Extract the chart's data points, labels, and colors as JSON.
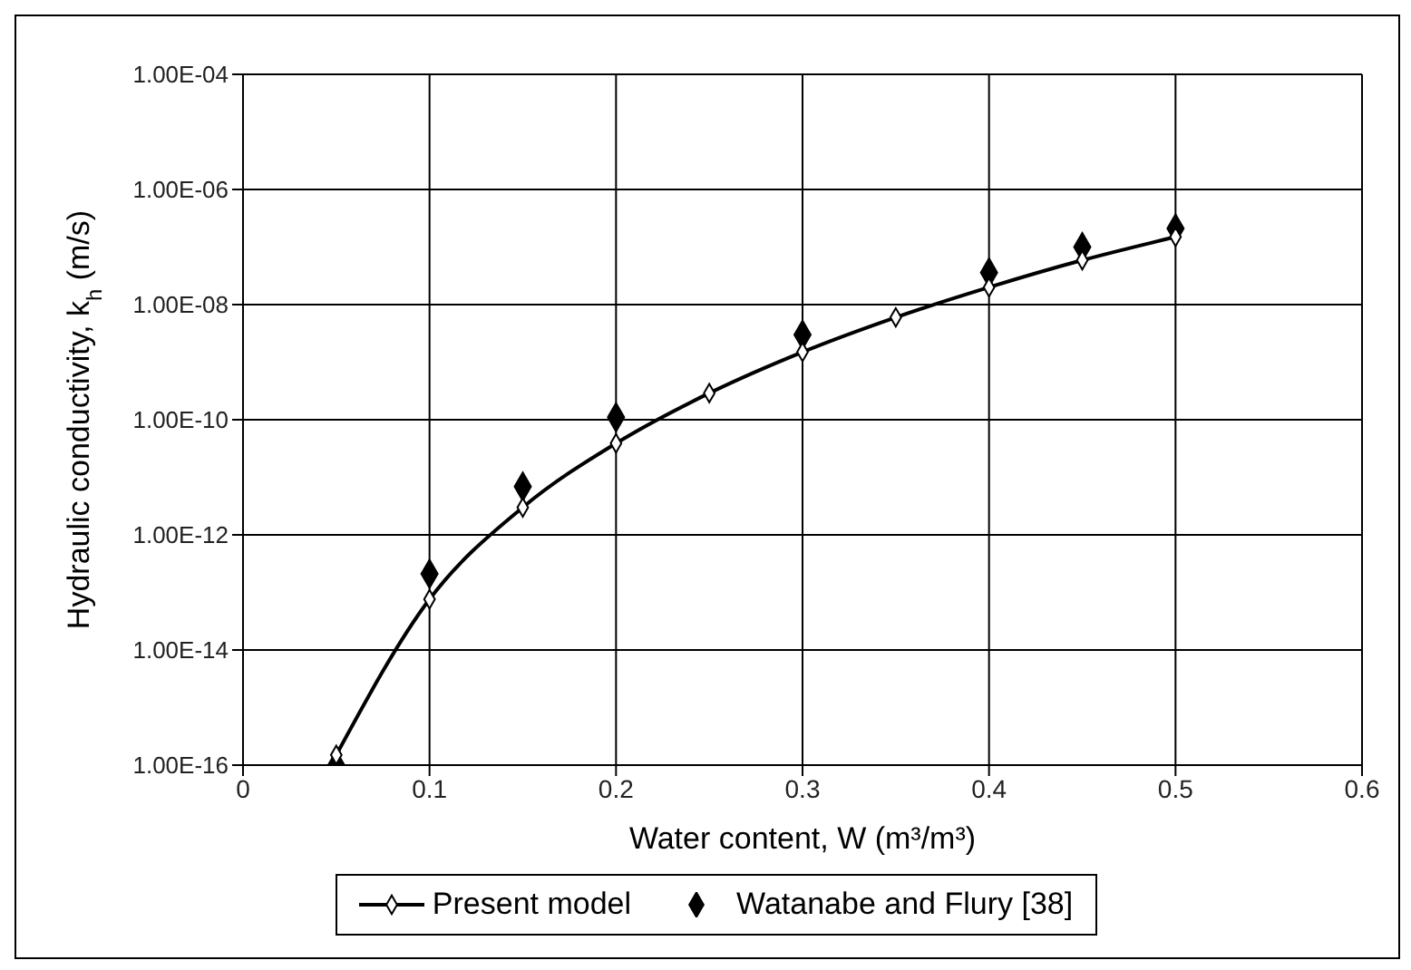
{
  "chart_data": {
    "type": "line",
    "xlabel": "Water content, W (m³/m³)",
    "ylabel": "Hydraulic conductivity, k$_{h}$ (m/s)",
    "log": "y",
    "xlim": [
      0,
      0.6
    ],
    "xticks": [
      0,
      0.1,
      0.2,
      0.3,
      0.4,
      0.5,
      0.6
    ],
    "ylim": [
      1e-16,
      0.0001
    ],
    "yticks": [
      {
        "value": 1e-16,
        "label": "1.00E-16"
      },
      {
        "value": 1e-14,
        "label": "1.00E-14"
      },
      {
        "value": 1e-12,
        "label": "1.00E-12"
      },
      {
        "value": 1e-10,
        "label": "1.00E-10"
      },
      {
        "value": 1e-08,
        "label": "1.00E-08"
      },
      {
        "value": 1e-06,
        "label": "1.00E-06"
      },
      {
        "value": 0.0001,
        "label": "1.00E-04"
      }
    ],
    "grid": true,
    "legend": "bottom",
    "series": [
      {
        "name": "Present model",
        "marker": "diamond",
        "color": "#000000",
        "x": [
          0.05,
          0.1,
          0.15,
          0.2,
          0.25,
          0.3,
          0.35,
          0.4,
          0.45,
          0.5
        ],
        "values": [
          1.5e-16,
          7.6e-14,
          3e-12,
          3.9e-11,
          2.9e-10,
          1.5e-09,
          6e-09,
          2e-08,
          5.9e-08,
          1.5e-07
        ]
      },
      {
        "name": "Watanabe and Flury [38]",
        "type": "scatter",
        "marker": "diamond",
        "color": "#000000",
        "x": [
          0.05,
          0.1,
          0.15,
          0.2,
          0.3,
          0.4,
          0.45,
          0.5
        ],
        "values": [
          1e-16,
          2.1e-13,
          6.9e-12,
          1.1e-10,
          3e-09,
          3.6e-08,
          1e-07,
          2.1e-07
        ]
      }
    ]
  }
}
